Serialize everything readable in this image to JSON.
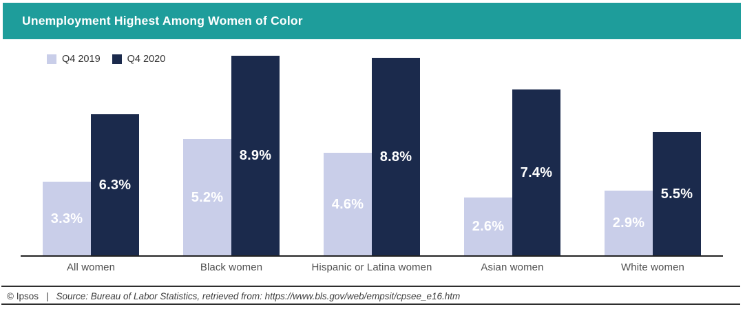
{
  "header": {
    "title": "Unemployment Highest Among Women of Color"
  },
  "colors": {
    "header_bg": "#1E9D9B",
    "series_q4_2019": "#C9CEE9",
    "series_q4_2020": "#1B2A4C",
    "axis_line": "#222222",
    "category_label_text": "#4F4F4F",
    "value_label_text": "#FFFFFF",
    "footer_rule": "#2E2E2E",
    "footer_text": "#3C3C3C"
  },
  "chart_data": {
    "type": "bar",
    "title": "Unemployment Highest Among Women of Color",
    "categories": [
      "All women",
      "Black women",
      "Hispanic or Latina women",
      "Asian women",
      "White women"
    ],
    "series": [
      {
        "name": "Q4 2019",
        "color": "#C9CEE9",
        "values": [
          3.3,
          5.2,
          4.6,
          2.6,
          2.9
        ]
      },
      {
        "name": "Q4 2020",
        "color": "#1B2A4C",
        "values": [
          6.3,
          8.9,
          8.8,
          7.4,
          5.5
        ]
      }
    ],
    "data_labels": [
      [
        "3.3%",
        "5.2%",
        "4.6%",
        "2.6%",
        "2.9%"
      ],
      [
        "6.3%",
        "8.9%",
        "8.8%",
        "7.4%",
        "5.5%"
      ]
    ],
    "xlabel": "",
    "ylabel": "",
    "ylim": [
      0,
      8.9
    ],
    "value_suffix": "%",
    "grid": false,
    "legend_position": "top-left",
    "data_label_position": "centered-inside-bar"
  },
  "footer": {
    "copyright": "© Ipsos",
    "separator": "|",
    "source": "Source: Bureau of Labor Statistics, retrieved from: https://www.bls.gov/web/empsit/cpsee_e16.htm"
  }
}
